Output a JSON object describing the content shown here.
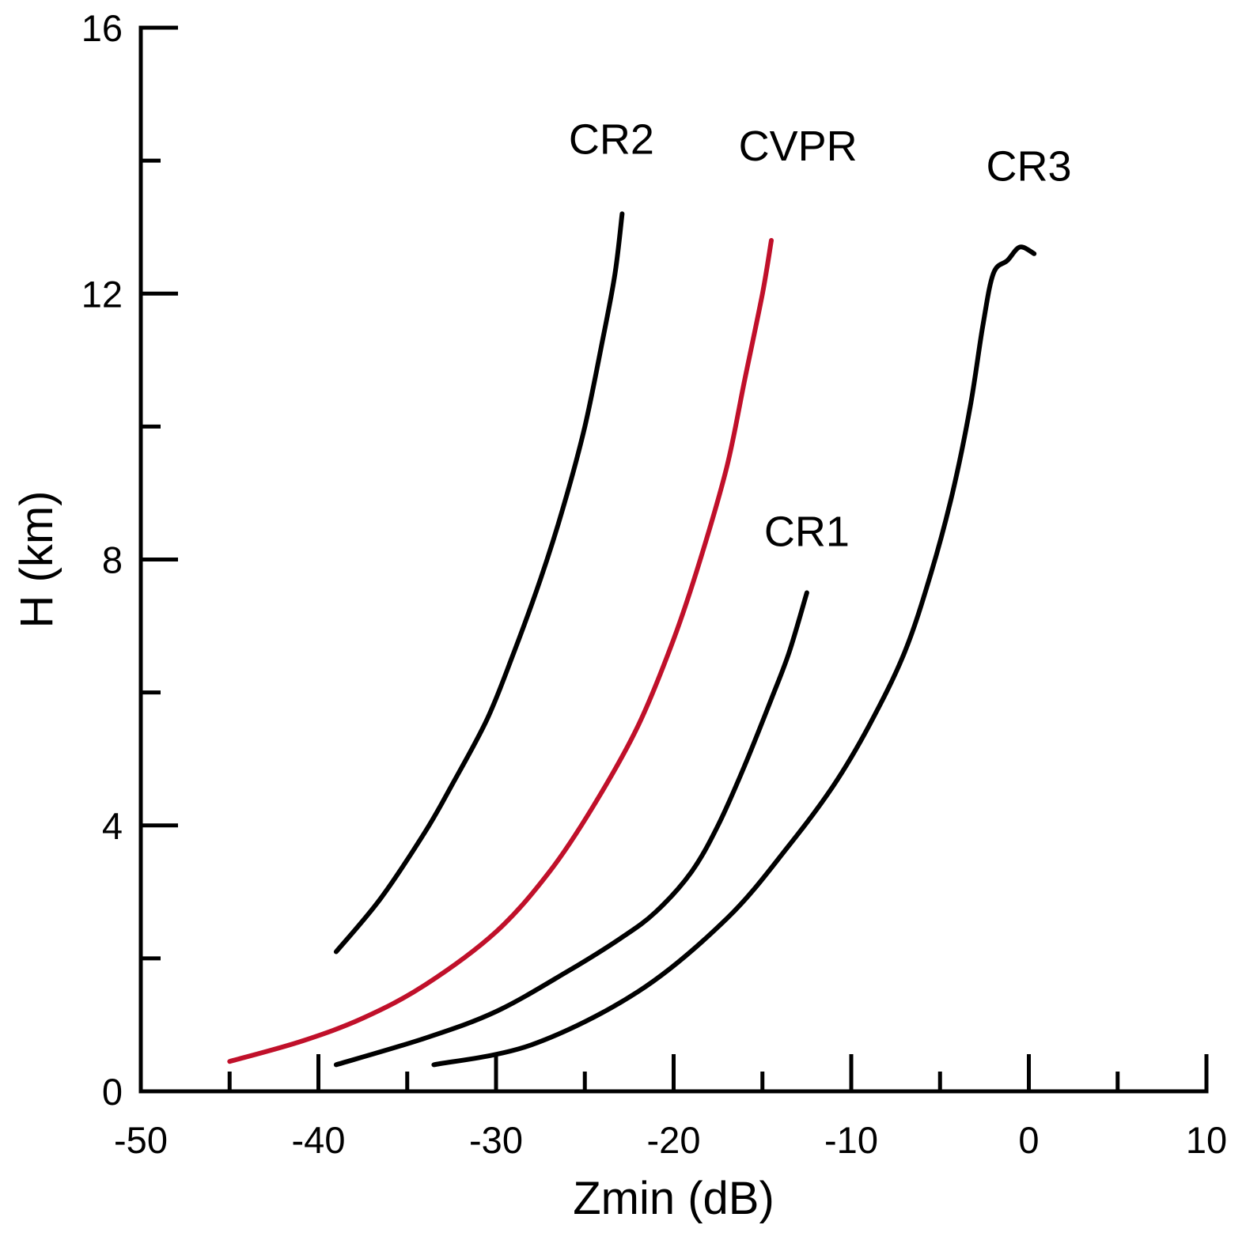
{
  "chart_data": {
    "type": "line",
    "title": "",
    "xlabel": "Zmin (dB)",
    "ylabel": "H (km)",
    "xlim": [
      -50,
      10
    ],
    "ylim": [
      0,
      16
    ],
    "xticks_major": [
      -50,
      -40,
      -30,
      -20,
      -10,
      0,
      10
    ],
    "xticks_minor": [
      -45,
      -35,
      -25,
      -15,
      -5,
      5
    ],
    "yticks_major": [
      0,
      4,
      8,
      12,
      16
    ],
    "yticks_minor": [
      2,
      6,
      10,
      14
    ],
    "grid": false,
    "legend": "none (series labelled directly on plot)",
    "series": [
      {
        "name": "CR2",
        "color": "#000000",
        "x": [
          -39.0,
          -36.5,
          -34.0,
          -32.5,
          -30.5,
          -29.0,
          -27.5,
          -26.2,
          -25.0,
          -24.0,
          -23.3,
          -22.9
        ],
        "y": [
          2.1,
          2.9,
          3.9,
          4.6,
          5.6,
          6.6,
          7.7,
          8.8,
          10.0,
          11.3,
          12.3,
          13.2
        ]
      },
      {
        "name": "CVPR",
        "color": "#c0102a",
        "x": [
          -45.0,
          -41.0,
          -37.5,
          -34.0,
          -30.0,
          -27.0,
          -24.5,
          -22.0,
          -20.0,
          -18.5,
          -17.0,
          -16.0,
          -15.0,
          -14.5
        ],
        "y": [
          0.45,
          0.75,
          1.1,
          1.6,
          2.4,
          3.3,
          4.3,
          5.5,
          6.8,
          8.0,
          9.4,
          10.7,
          12.0,
          12.8
        ]
      },
      {
        "name": "CR1",
        "color": "#000000",
        "x": [
          -39.0,
          -34.0,
          -30.0,
          -26.0,
          -23.0,
          -21.0,
          -19.0,
          -17.5,
          -16.0,
          -14.5,
          -13.5,
          -12.5
        ],
        "y": [
          0.4,
          0.8,
          1.2,
          1.8,
          2.3,
          2.7,
          3.3,
          4.0,
          4.9,
          5.9,
          6.6,
          7.5
        ]
      },
      {
        "name": "CR3",
        "color": "#000000",
        "x": [
          -33.5,
          -28.0,
          -22.0,
          -17.0,
          -13.5,
          -11.0,
          -9.0,
          -7.0,
          -5.5,
          -4.3,
          -3.3,
          -2.6,
          -2.0,
          -1.2,
          -0.5,
          0.3
        ],
        "y": [
          0.4,
          0.7,
          1.5,
          2.6,
          3.7,
          4.6,
          5.5,
          6.6,
          7.8,
          9.0,
          10.3,
          11.5,
          12.3,
          12.5,
          12.7,
          12.6
        ]
      }
    ],
    "annotations": [
      {
        "text": "CR2",
        "x": -23.5,
        "y": 14.1
      },
      {
        "text": "CVPR",
        "x": -13.0,
        "y": 14.0
      },
      {
        "text": "CR1",
        "x": -12.5,
        "y": 8.2
      },
      {
        "text": "CR3",
        "x": 0.0,
        "y": 13.7
      }
    ]
  }
}
